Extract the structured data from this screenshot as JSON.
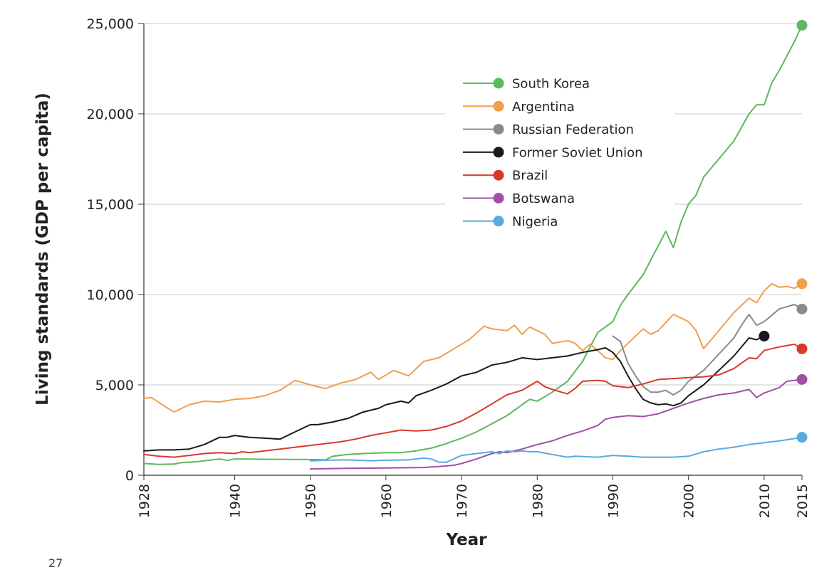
{
  "chart_data": {
    "type": "line",
    "title": "",
    "xlabel": "Year",
    "ylabel": "Living standards (GDP per capita)",
    "xlim": [
      1928,
      2015
    ],
    "ylim": [
      0,
      25000
    ],
    "grid": "horizontal",
    "legend_position": "top-center",
    "x_ticks": [
      1928,
      1940,
      1950,
      1960,
      1970,
      1980,
      1990,
      2000,
      2010,
      2015
    ],
    "x_tick_labels": [
      "1928",
      "1940",
      "1950",
      "1960",
      "1970",
      "1980",
      "1990",
      "2000",
      "2010",
      "2015"
    ],
    "y_ticks": [
      0,
      5000,
      10000,
      15000,
      20000,
      25000
    ],
    "y_tick_labels": [
      "0",
      "5,000",
      "10,000",
      "15,000",
      "20,000",
      "25,000"
    ],
    "series": [
      {
        "name": "South Korea",
        "color": "#5cb85c",
        "x": [
          1928,
          1930,
          1932,
          1933,
          1935,
          1937,
          1938,
          1939,
          1940,
          1941,
          1945,
          1950,
          1952,
          1953,
          1955,
          1957,
          1960,
          1962,
          1964,
          1966,
          1968,
          1970,
          1972,
          1974,
          1976,
          1978,
          1979,
          1980,
          1982,
          1984,
          1986,
          1988,
          1990,
          1991,
          1992,
          1994,
          1996,
          1997,
          1998,
          1999,
          2000,
          2001,
          2002,
          2004,
          2006,
          2008,
          2009,
          2010,
          2011,
          2012,
          2013,
          2014,
          2015
        ],
        "values": [
          650,
          600,
          620,
          700,
          750,
          850,
          900,
          820,
          900,
          900,
          880,
          870,
          850,
          1050,
          1150,
          1200,
          1250,
          1250,
          1350,
          1500,
          1750,
          2050,
          2400,
          2850,
          3300,
          3900,
          4200,
          4100,
          4600,
          5200,
          6300,
          7900,
          8500,
          9400,
          10000,
          11100,
          12700,
          13500,
          12600,
          14000,
          15000,
          15500,
          16500,
          17500,
          18500,
          20000,
          20500,
          20500,
          21700,
          22400,
          23200,
          24000,
          24900
        ]
      },
      {
        "name": "Argentina",
        "color": "#f0a04b",
        "x": [
          1928,
          1929,
          1931,
          1932,
          1934,
          1936,
          1938,
          1940,
          1942,
          1944,
          1946,
          1948,
          1950,
          1952,
          1954,
          1956,
          1958,
          1959,
          1961,
          1963,
          1965,
          1967,
          1969,
          1971,
          1973,
          1974,
          1976,
          1977,
          1978,
          1979,
          1981,
          1982,
          1984,
          1985,
          1986,
          1987,
          1988,
          1989,
          1990,
          1991,
          1993,
          1994,
          1995,
          1996,
          1998,
          2000,
          2001,
          2002,
          2004,
          2006,
          2008,
          2009,
          2010,
          2011,
          2012,
          2013,
          2014,
          2015
        ],
        "values": [
          4250,
          4300,
          3750,
          3500,
          3900,
          4100,
          4050,
          4200,
          4250,
          4400,
          4700,
          5250,
          5000,
          4800,
          5100,
          5300,
          5700,
          5300,
          5800,
          5500,
          6300,
          6500,
          7000,
          7500,
          8250,
          8100,
          8000,
          8300,
          7800,
          8200,
          7800,
          7300,
          7450,
          7300,
          6900,
          7250,
          6900,
          6500,
          6400,
          6900,
          7700,
          8100,
          7800,
          8000,
          8900,
          8500,
          8000,
          7000,
          8000,
          9000,
          9800,
          9550,
          10200,
          10600,
          10400,
          10450,
          10350,
          10600
        ]
      },
      {
        "name": "Russian Federation",
        "color": "#8a8a8a",
        "x": [
          1990,
          1991,
          1992,
          1993,
          1994,
          1995,
          1996,
          1997,
          1998,
          1999,
          2000,
          2002,
          2004,
          2006,
          2007,
          2008,
          2009,
          2010,
          2012,
          2014,
          2015
        ],
        "values": [
          7700,
          7400,
          6200,
          5500,
          4900,
          4600,
          4600,
          4700,
          4450,
          4700,
          5200,
          5800,
          6700,
          7600,
          8300,
          8900,
          8300,
          8500,
          9200,
          9450,
          9200
        ]
      },
      {
        "name": "Former Soviet Union",
        "color": "#1a1a1a",
        "x": [
          1928,
          1930,
          1932,
          1934,
          1936,
          1938,
          1939,
          1940,
          1942,
          1944,
          1946,
          1948,
          1950,
          1951,
          1953,
          1955,
          1957,
          1959,
          1960,
          1962,
          1963,
          1964,
          1966,
          1968,
          1970,
          1972,
          1974,
          1976,
          1978,
          1980,
          1982,
          1984,
          1986,
          1988,
          1989,
          1990,
          1991,
          1992,
          1993,
          1994,
          1995,
          1996,
          1997,
          1998,
          1999,
          2000,
          2002,
          2004,
          2006,
          2008,
          2009,
          2010
        ],
        "values": [
          1350,
          1400,
          1400,
          1450,
          1700,
          2100,
          2100,
          2200,
          2100,
          2050,
          2000,
          2400,
          2800,
          2800,
          2950,
          3150,
          3500,
          3700,
          3900,
          4100,
          4000,
          4400,
          4700,
          5050,
          5500,
          5700,
          6100,
          6250,
          6500,
          6400,
          6500,
          6600,
          6800,
          6950,
          7050,
          6800,
          6300,
          5500,
          4800,
          4200,
          4000,
          3900,
          3950,
          3850,
          4000,
          4400,
          5000,
          5800,
          6600,
          7600,
          7500,
          7700
        ]
      },
      {
        "name": "Brazil",
        "color": "#d9392b",
        "x": [
          1928,
          1930,
          1932,
          1934,
          1936,
          1938,
          1940,
          1941,
          1942,
          1944,
          1946,
          1948,
          1950,
          1952,
          1954,
          1956,
          1958,
          1960,
          1962,
          1964,
          1966,
          1968,
          1970,
          1972,
          1974,
          1976,
          1978,
          1980,
          1981,
          1982,
          1984,
          1985,
          1986,
          1988,
          1989,
          1990,
          1992,
          1994,
          1996,
          1998,
          2000,
          2002,
          2004,
          2006,
          2008,
          2009,
          2010,
          2012,
          2014,
          2015
        ],
        "values": [
          1150,
          1050,
          1000,
          1100,
          1200,
          1250,
          1200,
          1300,
          1250,
          1350,
          1450,
          1550,
          1650,
          1750,
          1850,
          2000,
          2200,
          2350,
          2500,
          2450,
          2500,
          2700,
          3000,
          3450,
          3950,
          4450,
          4700,
          5200,
          4900,
          4750,
          4500,
          4800,
          5200,
          5250,
          5200,
          4950,
          4850,
          5050,
          5300,
          5350,
          5400,
          5450,
          5550,
          5900,
          6500,
          6450,
          6900,
          7100,
          7250,
          7000
        ]
      },
      {
        "name": "Botswana",
        "color": "#a14fa8",
        "x": [
          1950,
          1955,
          1960,
          1965,
          1967,
          1969,
          1970,
          1972,
          1974,
          1975,
          1976,
          1977,
          1978,
          1980,
          1982,
          1984,
          1986,
          1988,
          1989,
          1990,
          1992,
          1994,
          1996,
          1998,
          2000,
          2002,
          2004,
          2006,
          2008,
          2009,
          2010,
          2012,
          2013,
          2015
        ],
        "values": [
          350,
          380,
          400,
          430,
          480,
          550,
          650,
          900,
          1200,
          1300,
          1250,
          1350,
          1450,
          1700,
          1900,
          2200,
          2450,
          2750,
          3100,
          3200,
          3300,
          3250,
          3400,
          3700,
          4000,
          4250,
          4450,
          4550,
          4750,
          4300,
          4550,
          4850,
          5200,
          5300
        ]
      },
      {
        "name": "Nigeria",
        "color": "#5aaae0",
        "x": [
          1950,
          1952,
          1955,
          1958,
          1960,
          1963,
          1965,
          1966,
          1967,
          1968,
          1970,
          1972,
          1974,
          1975,
          1976,
          1977,
          1978,
          1979,
          1980,
          1982,
          1984,
          1985,
          1988,
          1990,
          1992,
          1994,
          1996,
          1998,
          2000,
          2002,
          2004,
          2006,
          2008,
          2010,
          2012,
          2015
        ],
        "values": [
          800,
          830,
          850,
          800,
          830,
          850,
          950,
          900,
          720,
          720,
          1100,
          1200,
          1300,
          1200,
          1350,
          1300,
          1350,
          1300,
          1300,
          1150,
          1000,
          1050,
          1000,
          1100,
          1050,
          1000,
          1000,
          1000,
          1050,
          1300,
          1450,
          1550,
          1700,
          1800,
          1900,
          2100
        ]
      }
    ],
    "end_markers": [
      {
        "series": "South Korea",
        "x": 2015,
        "y": 24900
      },
      {
        "series": "Argentina",
        "x": 2015,
        "y": 10600
      },
      {
        "series": "Russian Federation",
        "x": 2015,
        "y": 9200
      },
      {
        "series": "Former Soviet Union",
        "x": 2010,
        "y": 7700
      },
      {
        "series": "Brazil",
        "x": 2015,
        "y": 7000
      },
      {
        "series": "Botswana",
        "x": 2015,
        "y": 5300
      },
      {
        "series": "Nigeria",
        "x": 2015,
        "y": 2100
      }
    ]
  },
  "page_number": "27"
}
